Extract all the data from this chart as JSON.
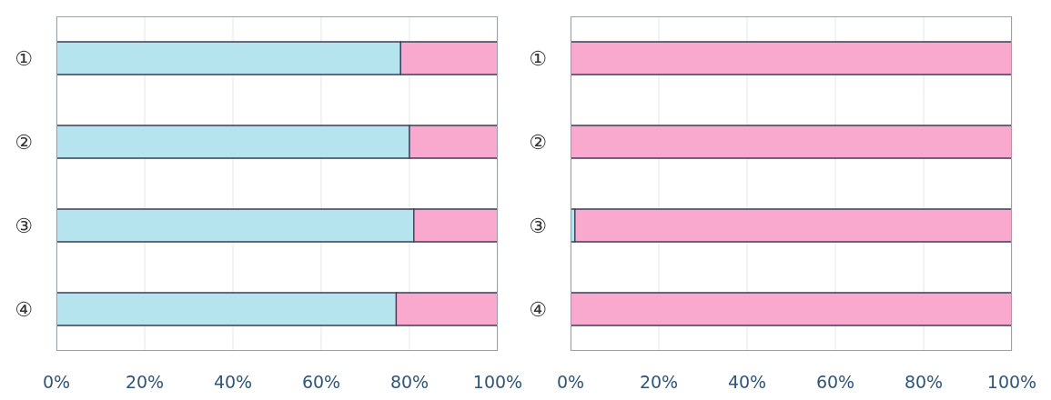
{
  "chart_data": [
    {
      "type": "bar",
      "orientation": "horizontal",
      "stacked": true,
      "categories": [
        "①",
        "②",
        "③",
        "④"
      ],
      "series": [
        {
          "color": "#b5e3ee",
          "values": [
            78,
            80,
            81,
            77
          ]
        },
        {
          "color": "#f9a9cd",
          "values": [
            22,
            20,
            19,
            23
          ]
        }
      ],
      "xlim": [
        0,
        100
      ],
      "xticks": [
        {
          "value": 0,
          "label": "0%"
        },
        {
          "value": 20,
          "label": "20%"
        },
        {
          "value": 40,
          "label": "40%"
        },
        {
          "value": 60,
          "label": "60%"
        },
        {
          "value": 80,
          "label": "80%"
        },
        {
          "value": 100,
          "label": "100%"
        }
      ],
      "grid": "x"
    },
    {
      "type": "bar",
      "orientation": "horizontal",
      "stacked": true,
      "categories": [
        "①",
        "②",
        "③",
        "④"
      ],
      "series": [
        {
          "color": "#b5e3ee",
          "values": [
            0,
            0,
            1,
            0
          ]
        },
        {
          "color": "#f9a9cd",
          "values": [
            100,
            100,
            99,
            100
          ]
        }
      ],
      "xlim": [
        0,
        100
      ],
      "xticks": [
        {
          "value": 0,
          "label": "0%"
        },
        {
          "value": 20,
          "label": "20%"
        },
        {
          "value": 40,
          "label": "40%"
        },
        {
          "value": 60,
          "label": "60%"
        },
        {
          "value": 80,
          "label": "80%"
        },
        {
          "value": 100,
          "label": "100%"
        }
      ],
      "grid": "x"
    }
  ]
}
